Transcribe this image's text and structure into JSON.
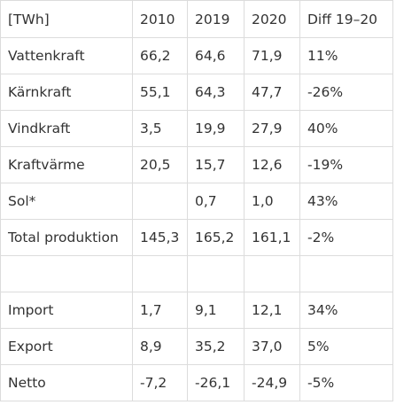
{
  "table": {
    "header": [
      "[TWh]",
      "2010",
      "2019",
      "2020",
      "Diff 19–20"
    ],
    "rows": [
      [
        "Vattenkraft",
        "66,2",
        "64,6",
        "71,9",
        "11%"
      ],
      [
        "Kärnkraft",
        "55,1",
        "64,3",
        "47,7",
        "-26%"
      ],
      [
        "Vindkraft",
        "3,5",
        "19,9",
        "27,9",
        "40%"
      ],
      [
        "Kraftvärme",
        "20,5",
        "15,7",
        "12,6",
        "-19%"
      ],
      [
        "Sol*",
        "",
        "0,7",
        "1,0",
        "43%"
      ],
      [
        "Total produktion",
        "145,3",
        "165,2",
        "161,1",
        "-2%"
      ],
      [
        "",
        "",
        "",
        "",
        ""
      ],
      [
        "Import",
        "1,7",
        "9,1",
        "12,1",
        "34%"
      ],
      [
        "Export",
        "8,9",
        "35,2",
        "37,0",
        "5%"
      ],
      [
        "Netto",
        "-7,2",
        "-26,1",
        "-24,9",
        "-5%"
      ]
    ]
  }
}
